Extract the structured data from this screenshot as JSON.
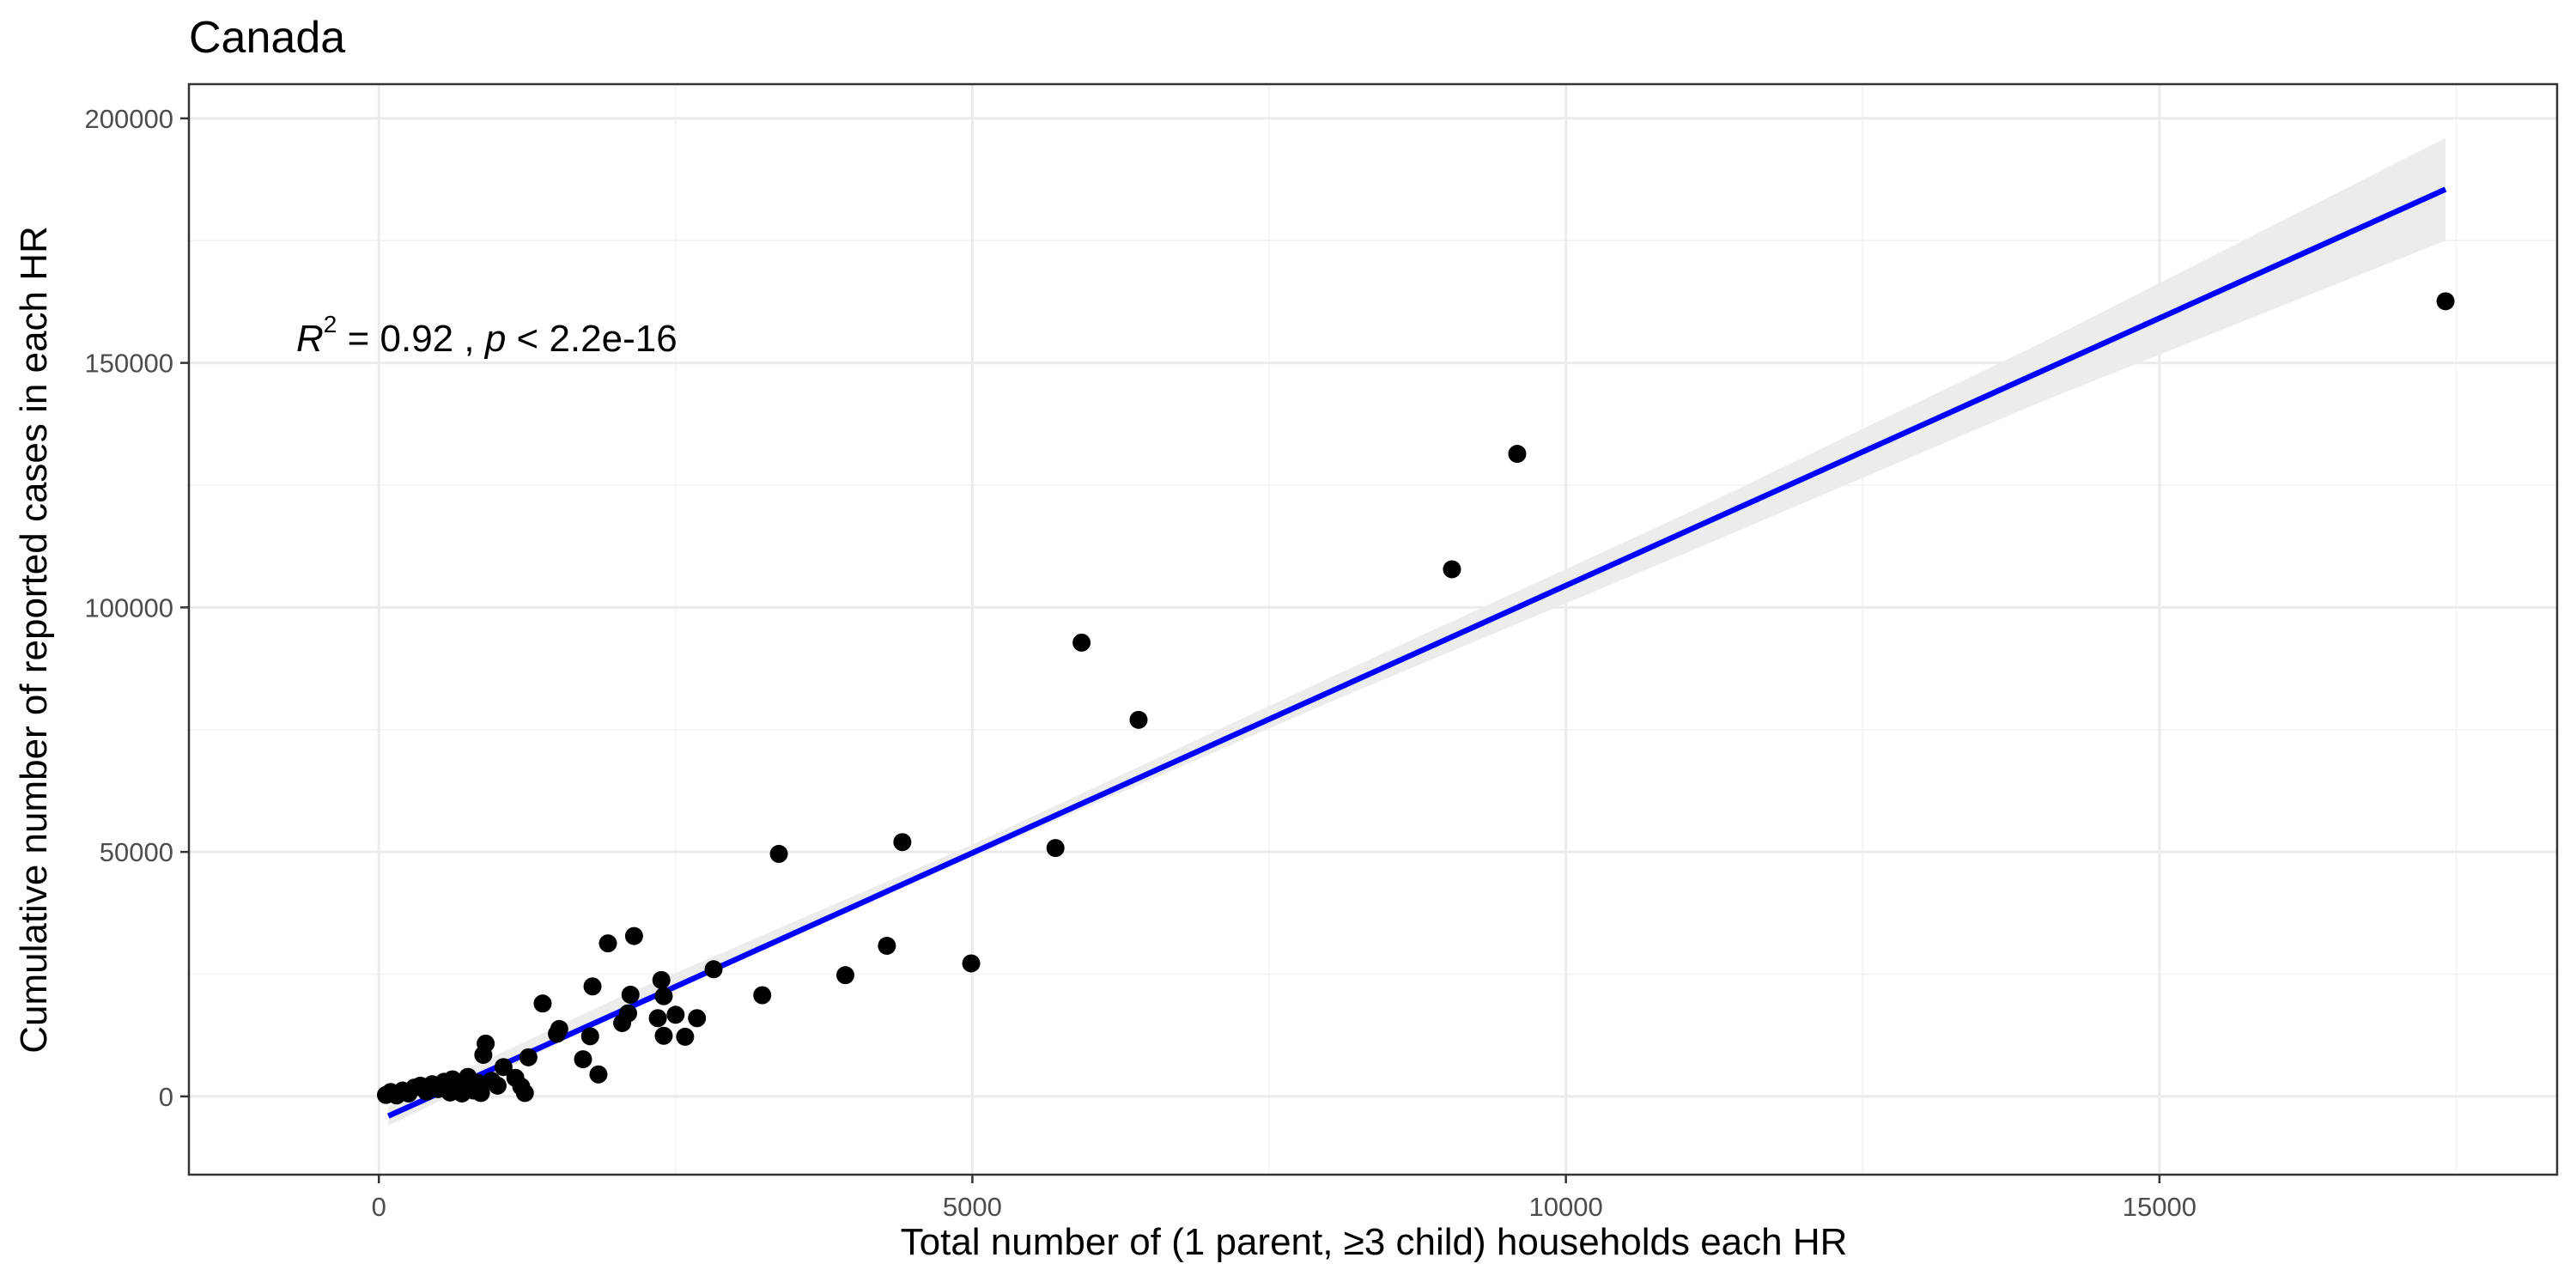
{
  "chart_data": {
    "type": "scatter",
    "title": "Canada",
    "xlabel": "Total number of (1 parent, ≥3 child) households each HR",
    "ylabel": "Cumulative number of reported cases in each HR",
    "xlim": [
      -1600,
      18350
    ],
    "ylim": [
      -16000,
      207000
    ],
    "x_ticks": [
      0,
      5000,
      10000,
      15000
    ],
    "x_tick_labels": [
      "0",
      "5000",
      "10000",
      "15000"
    ],
    "y_ticks": [
      0,
      50000,
      100000,
      150000,
      200000
    ],
    "y_tick_labels": [
      "0",
      "50000",
      "100000",
      "150000",
      "200000"
    ],
    "grid": true,
    "annotation": {
      "r_symbol": "R",
      "r_exponent": "2",
      "r_text": " = 0.92 , ",
      "p_symbol": "p",
      "p_text": " < 2.2e-16"
    },
    "points": [
      {
        "x": 60,
        "y": 300
      },
      {
        "x": 100,
        "y": 900
      },
      {
        "x": 150,
        "y": 200
      },
      {
        "x": 200,
        "y": 1200
      },
      {
        "x": 250,
        "y": 600
      },
      {
        "x": 300,
        "y": 1800
      },
      {
        "x": 350,
        "y": 2200
      },
      {
        "x": 400,
        "y": 1000
      },
      {
        "x": 450,
        "y": 2500
      },
      {
        "x": 500,
        "y": 1500
      },
      {
        "x": 550,
        "y": 3000
      },
      {
        "x": 600,
        "y": 800
      },
      {
        "x": 620,
        "y": 3500
      },
      {
        "x": 680,
        "y": 2000
      },
      {
        "x": 700,
        "y": 600
      },
      {
        "x": 750,
        "y": 4000
      },
      {
        "x": 800,
        "y": 1200
      },
      {
        "x": 830,
        "y": 2800
      },
      {
        "x": 860,
        "y": 700
      },
      {
        "x": 880,
        "y": 8500
      },
      {
        "x": 900,
        "y": 10800
      },
      {
        "x": 950,
        "y": 3200
      },
      {
        "x": 1000,
        "y": 2200
      },
      {
        "x": 1050,
        "y": 6000
      },
      {
        "x": 1150,
        "y": 3800
      },
      {
        "x": 1200,
        "y": 2000
      },
      {
        "x": 1230,
        "y": 700
      },
      {
        "x": 1260,
        "y": 8000
      },
      {
        "x": 1380,
        "y": 19000
      },
      {
        "x": 1500,
        "y": 12800
      },
      {
        "x": 1520,
        "y": 13800
      },
      {
        "x": 1720,
        "y": 7600
      },
      {
        "x": 1780,
        "y": 12300
      },
      {
        "x": 1800,
        "y": 22500
      },
      {
        "x": 1850,
        "y": 4500
      },
      {
        "x": 1930,
        "y": 31300
      },
      {
        "x": 2050,
        "y": 15000
      },
      {
        "x": 2100,
        "y": 17000
      },
      {
        "x": 2120,
        "y": 20800
      },
      {
        "x": 2150,
        "y": 32800
      },
      {
        "x": 2350,
        "y": 16000
      },
      {
        "x": 2380,
        "y": 23800
      },
      {
        "x": 2400,
        "y": 20500
      },
      {
        "x": 2400,
        "y": 12400
      },
      {
        "x": 2500,
        "y": 16700
      },
      {
        "x": 2580,
        "y": 12200
      },
      {
        "x": 2680,
        "y": 16000
      },
      {
        "x": 2820,
        "y": 26000
      },
      {
        "x": 3230,
        "y": 20700
      },
      {
        "x": 3370,
        "y": 49600
      },
      {
        "x": 3930,
        "y": 24800
      },
      {
        "x": 4280,
        "y": 30800
      },
      {
        "x": 4410,
        "y": 52000
      },
      {
        "x": 4990,
        "y": 27200
      },
      {
        "x": 5700,
        "y": 50800
      },
      {
        "x": 5920,
        "y": 92800
      },
      {
        "x": 6400,
        "y": 77000
      },
      {
        "x": 9040,
        "y": 107800
      },
      {
        "x": 9590,
        "y": 131400
      },
      {
        "x": 17410,
        "y": 162600
      }
    ],
    "fit_line": {
      "x": [
        80,
        17410
      ],
      "y": [
        -4000,
        185500
      ],
      "color": "#0000ff"
    },
    "confidence_band": {
      "x": [
        80,
        2000,
        5000,
        8000,
        11000,
        14000,
        17410
      ],
      "lower": [
        -6000,
        16500,
        49000,
        80500,
        111000,
        142000,
        175000
      ],
      "upper": [
        -2000,
        20000,
        51500,
        85500,
        119000,
        154000,
        196000
      ],
      "color": "#ebebeb"
    },
    "point_color": "#000000"
  }
}
